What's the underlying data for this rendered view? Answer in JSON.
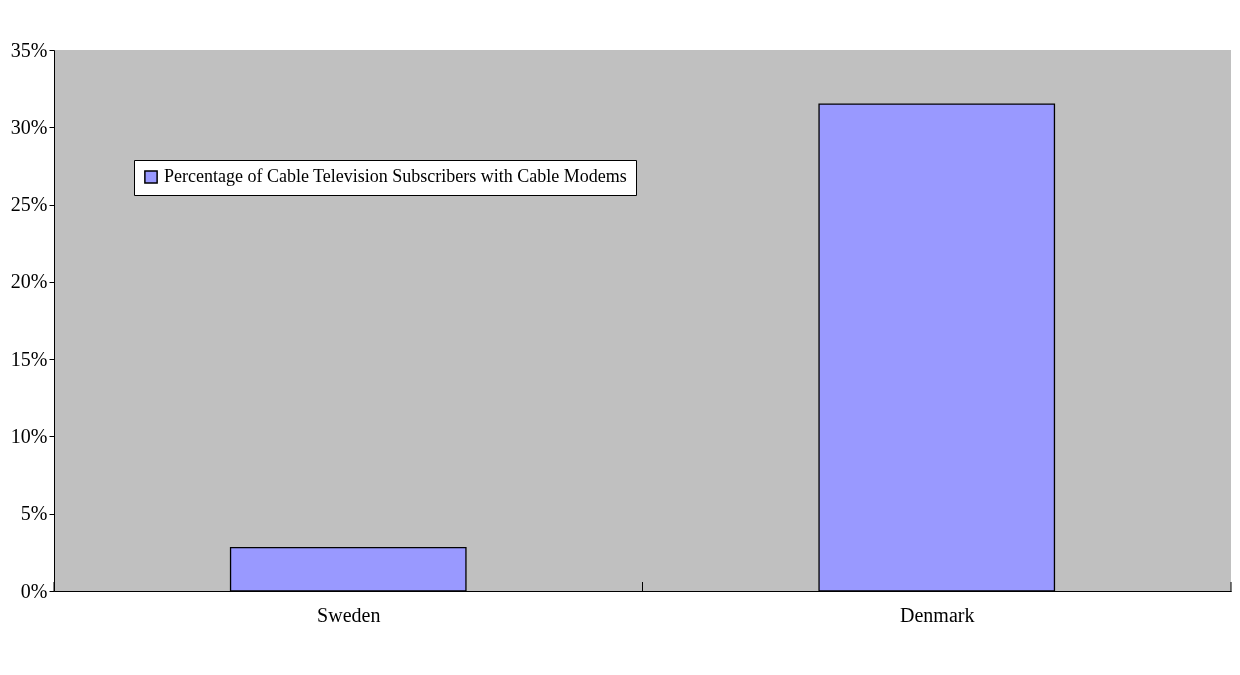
{
  "chart_data": {
    "type": "bar",
    "categories": [
      "Sweden",
      "Denmark"
    ],
    "series": [
      {
        "name": "Percentage of Cable Television Subscribers with Cable Modems",
        "color": "#9999ff",
        "values": [
          2.8,
          31.5
        ]
      }
    ],
    "ylim": [
      0,
      35
    ],
    "yticks": [
      {
        "value": 0,
        "label": "0%"
      },
      {
        "value": 5,
        "label": "5%"
      },
      {
        "value": 10,
        "label": "10%"
      },
      {
        "value": 15,
        "label": "15%"
      },
      {
        "value": 20,
        "label": "20%"
      },
      {
        "value": 25,
        "label": "25%"
      },
      {
        "value": 30,
        "label": "30%"
      },
      {
        "value": 35,
        "label": "35%"
      }
    ],
    "grid": false,
    "legend": "top left"
  }
}
